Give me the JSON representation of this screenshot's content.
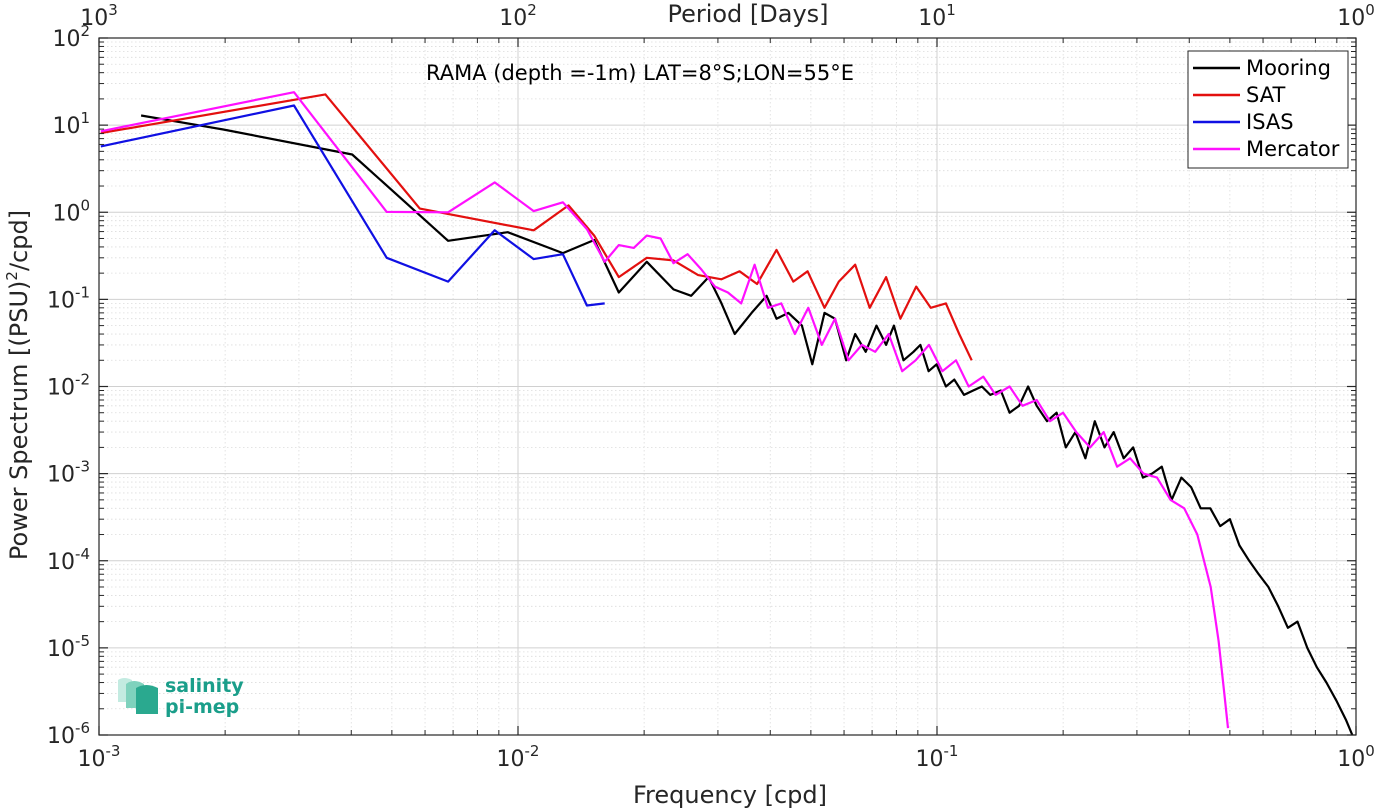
{
  "chart_data": {
    "type": "line",
    "title": "RAMA (depth =-1m) LAT=8°S;LON=55°E",
    "xlabel": "Frequency [cpd]",
    "ylabel": "Power Spectrum [(PSU)^2/cpd]",
    "ylabel_parts": {
      "pre": "Power Spectrum [(PSU)",
      "sup": "2",
      "post": "/cpd]"
    },
    "top_xlabel": "Period [Days]",
    "xscale": "log",
    "yscale": "log",
    "xlim": [
      0.001,
      1
    ],
    "ylim": [
      1e-06,
      100
    ],
    "grid": true,
    "legend_position": "top-right",
    "x_ticks": [
      {
        "base": "10",
        "exp": "-3"
      },
      {
        "base": "10",
        "exp": "-2"
      },
      {
        "base": "10",
        "exp": "-1"
      },
      {
        "base": "10",
        "exp": "0"
      }
    ],
    "top_ticks": [
      {
        "base": "10",
        "exp": "3"
      },
      {
        "base": "10",
        "exp": "2"
      },
      {
        "base": "10",
        "exp": "1"
      },
      {
        "base": "10",
        "exp": "0"
      }
    ],
    "y_ticks": [
      {
        "base": "10",
        "exp": "-6"
      },
      {
        "base": "10",
        "exp": "-5"
      },
      {
        "base": "10",
        "exp": "-4"
      },
      {
        "base": "10",
        "exp": "-3"
      },
      {
        "base": "10",
        "exp": "-2"
      },
      {
        "base": "10",
        "exp": "-1"
      },
      {
        "base": "10",
        "exp": "0"
      },
      {
        "base": "10",
        "exp": "1"
      },
      {
        "base": "10",
        "exp": "2"
      }
    ],
    "series": [
      {
        "name": "Mooring",
        "color": "#000000",
        "x": [
          0.00126,
          0.00198,
          0.00402,
          0.00681,
          0.00945,
          0.0128,
          0.0152,
          0.0174,
          0.0203,
          0.0235,
          0.0259,
          0.0285,
          0.0306,
          0.0329,
          0.0361,
          0.0392,
          0.0414,
          0.0442,
          0.0476,
          0.0504,
          0.0539,
          0.0571,
          0.0607,
          0.0638,
          0.0676,
          0.0717,
          0.0756,
          0.0789,
          0.0832,
          0.0879,
          0.0913,
          0.0955,
          0.0998,
          0.105,
          0.11,
          0.116,
          0.122,
          0.128,
          0.134,
          0.142,
          0.149,
          0.157,
          0.165,
          0.173,
          0.183,
          0.193,
          0.203,
          0.214,
          0.226,
          0.238,
          0.251,
          0.264,
          0.279,
          0.294,
          0.31,
          0.326,
          0.344,
          0.363,
          0.383,
          0.404,
          0.426,
          0.449,
          0.474,
          0.5,
          0.527,
          0.556,
          0.586,
          0.618,
          0.652,
          0.688,
          0.725,
          0.765,
          0.806,
          0.85,
          0.897,
          0.946,
          0.98
        ],
        "y": [
          12.9,
          8.9,
          4.6,
          0.47,
          0.59,
          0.34,
          0.48,
          0.12,
          0.27,
          0.13,
          0.11,
          0.18,
          0.09,
          0.04,
          0.07,
          0.11,
          0.06,
          0.07,
          0.05,
          0.018,
          0.07,
          0.06,
          0.02,
          0.04,
          0.025,
          0.05,
          0.03,
          0.05,
          0.02,
          0.025,
          0.03,
          0.015,
          0.018,
          0.01,
          0.012,
          0.008,
          0.009,
          0.01,
          0.008,
          0.009,
          0.005,
          0.006,
          0.01,
          0.006,
          0.004,
          0.005,
          0.002,
          0.003,
          0.0015,
          0.004,
          0.002,
          0.003,
          0.0015,
          0.002,
          0.0009,
          0.001,
          0.0012,
          0.0005,
          0.0009,
          0.0007,
          0.0004,
          0.0004,
          0.00025,
          0.0003,
          0.00015,
          0.0001,
          7e-05,
          5e-05,
          3e-05,
          1.7e-05,
          2e-05,
          1e-05,
          6e-06,
          4e-06,
          2.5e-06,
          1.5e-06,
          1e-06
        ]
      },
      {
        "name": "SAT",
        "color": "#e3100f",
        "x": [
          0.00101,
          0.00347,
          0.00583,
          0.0109,
          0.0132,
          0.0152,
          0.0174,
          0.0203,
          0.0235,
          0.0269,
          0.0306,
          0.0338,
          0.0372,
          0.0414,
          0.0454,
          0.0491,
          0.0539,
          0.0583,
          0.0638,
          0.0691,
          0.0756,
          0.0818,
          0.0892,
          0.0966,
          0.105,
          0.113,
          0.121
        ],
        "y": [
          8.1,
          22.5,
          1.1,
          0.62,
          1.2,
          0.54,
          0.18,
          0.3,
          0.28,
          0.19,
          0.17,
          0.21,
          0.15,
          0.37,
          0.16,
          0.21,
          0.08,
          0.16,
          0.25,
          0.08,
          0.18,
          0.06,
          0.14,
          0.08,
          0.09,
          0.04,
          0.02
        ]
      },
      {
        "name": "ISAS",
        "color": "#1010e3",
        "x": [
          0.00101,
          0.00292,
          0.00486,
          0.00681,
          0.0088,
          0.0109,
          0.0128,
          0.0146,
          0.0161
        ],
        "y": [
          5.7,
          16.8,
          0.3,
          0.16,
          0.62,
          0.29,
          0.33,
          0.085,
          0.09
        ]
      },
      {
        "name": "Mercator",
        "color": "#ff10ff",
        "x": [
          0.00101,
          0.00292,
          0.00486,
          0.00681,
          0.0088,
          0.0109,
          0.0128,
          0.0146,
          0.0161,
          0.0174,
          0.0189,
          0.0203,
          0.0219,
          0.0235,
          0.0254,
          0.0274,
          0.0295,
          0.0317,
          0.0341,
          0.0367,
          0.0395,
          0.0425,
          0.0458,
          0.0493,
          0.0531,
          0.0571,
          0.0615,
          0.0662,
          0.0712,
          0.0767,
          0.0826,
          0.0889,
          0.0957,
          0.103,
          0.111,
          0.119,
          0.129,
          0.138,
          0.149,
          0.16,
          0.173,
          0.186,
          0.2,
          0.215,
          0.232,
          0.25,
          0.269,
          0.289,
          0.311,
          0.335,
          0.361,
          0.389,
          0.418,
          0.45,
          0.47,
          0.485,
          0.495
        ],
        "y": [
          8.5,
          23.9,
          1.01,
          1.0,
          2.2,
          1.03,
          1.3,
          0.64,
          0.27,
          0.42,
          0.39,
          0.54,
          0.5,
          0.26,
          0.33,
          0.22,
          0.14,
          0.12,
          0.09,
          0.25,
          0.08,
          0.09,
          0.04,
          0.08,
          0.03,
          0.06,
          0.02,
          0.03,
          0.025,
          0.04,
          0.015,
          0.02,
          0.03,
          0.015,
          0.02,
          0.01,
          0.013,
          0.008,
          0.01,
          0.006,
          0.007,
          0.004,
          0.005,
          0.003,
          0.002,
          0.003,
          0.0012,
          0.0015,
          0.001,
          0.0009,
          0.0005,
          0.0004,
          0.0002,
          5e-05,
          1.2e-05,
          3e-06,
          1.2e-06
        ]
      }
    ]
  },
  "logo": {
    "line1": "salinity",
    "line2": "pi-mep"
  }
}
